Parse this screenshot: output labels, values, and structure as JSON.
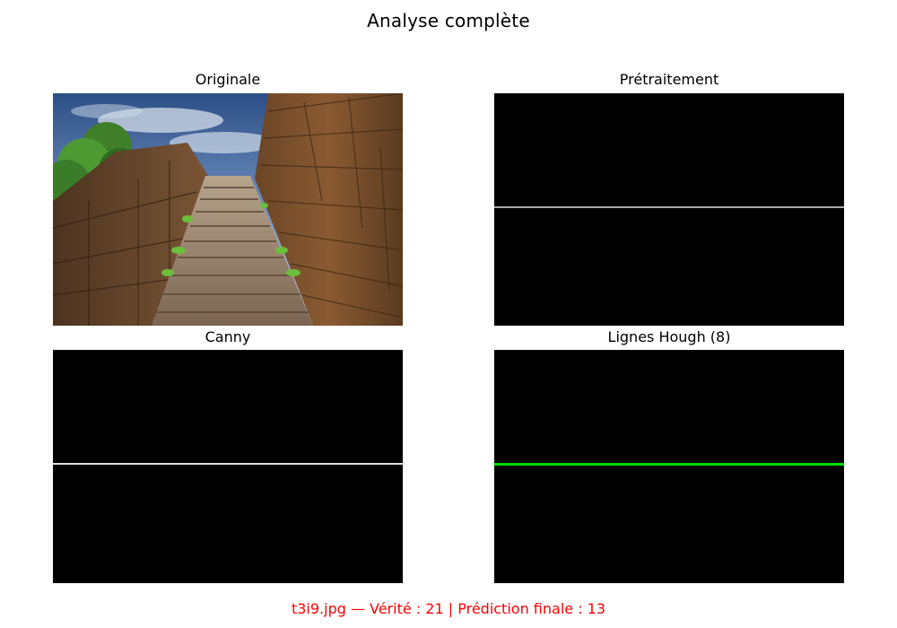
{
  "figure": {
    "title": "Analyse complète",
    "caption": "t3i9.jpg — Vérité : 21 | Prédiction finale : 13",
    "caption_color": "#ff0000"
  },
  "panels": {
    "original": {
      "title": "Originale"
    },
    "preprocessing": {
      "title": "Prétraitement",
      "line_color": "#aaaaaa"
    },
    "canny": {
      "title": "Canny",
      "line_color": "#dddddd"
    },
    "hough": {
      "title": "Lignes Hough (8)",
      "line_color": "#00dd00"
    }
  }
}
